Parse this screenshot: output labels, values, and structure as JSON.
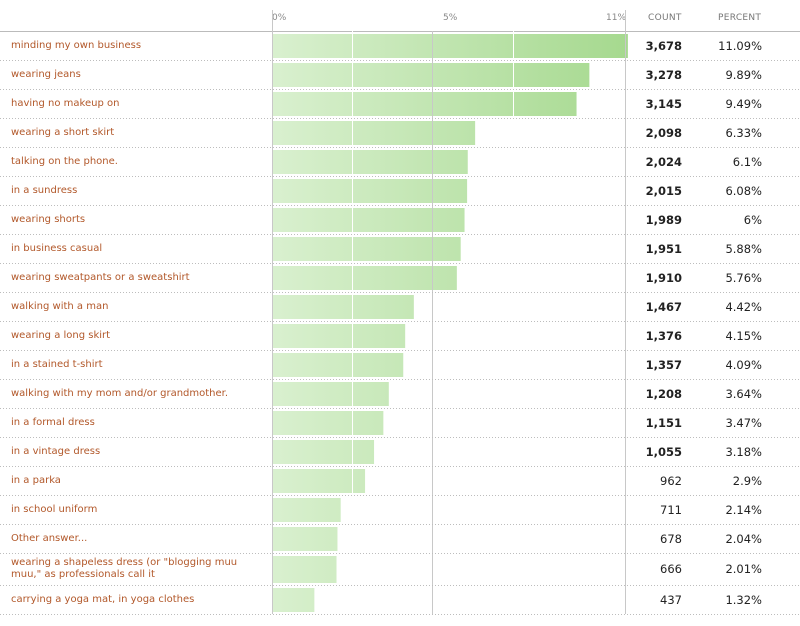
{
  "chart_data": {
    "type": "bar",
    "orientation": "horizontal",
    "x_ticks": [
      "0%",
      "5%",
      "11%"
    ],
    "xlim": [
      0,
      11
    ],
    "columns": {
      "count": "COUNT",
      "percent": "PERCENT"
    },
    "categories": [
      "minding my own business",
      "wearing jeans",
      "having no makeup on",
      "wearing a short skirt",
      "talking on the phone.",
      "in a sundress",
      "wearing shorts",
      "in business casual",
      "wearing sweatpants or a sweatshirt",
      "walking with a man",
      "wearing a long skirt",
      "in a stained t-shirt",
      "walking with my mom and/or grandmother.",
      "in a formal dress",
      "in a vintage dress",
      "in a parka",
      "in school uniform",
      "Other answer...",
      "wearing a shapeless dress (or \"blogging muu muu,\" as professionals call it",
      "carrying a yoga mat, in yoga clothes"
    ],
    "counts": [
      "3,678",
      "3,278",
      "3,145",
      "2,098",
      "2,024",
      "2,015",
      "1,989",
      "1,951",
      "1,910",
      "1,467",
      "1,376",
      "1,357",
      "1,208",
      "1,151",
      "1,055",
      "962",
      "711",
      "678",
      "666",
      "437"
    ],
    "percents": [
      "11.09%",
      "9.89%",
      "9.49%",
      "6.33%",
      "6.1%",
      "6.08%",
      "6%",
      "5.88%",
      "5.76%",
      "4.42%",
      "4.15%",
      "4.09%",
      "3.64%",
      "3.47%",
      "3.18%",
      "2.9%",
      "2.14%",
      "2.04%",
      "2.01%",
      "1.32%"
    ],
    "values": [
      11.09,
      9.89,
      9.49,
      6.33,
      6.1,
      6.08,
      6,
      5.88,
      5.76,
      4.42,
      4.15,
      4.09,
      3.64,
      3.47,
      3.18,
      2.9,
      2.14,
      2.04,
      2.01,
      1.32
    ],
    "colors": {
      "bar_light": "#d9f0cf",
      "bar_dark": "#a6d98f",
      "label": "#b2582a",
      "grid": "#cccccc"
    }
  }
}
